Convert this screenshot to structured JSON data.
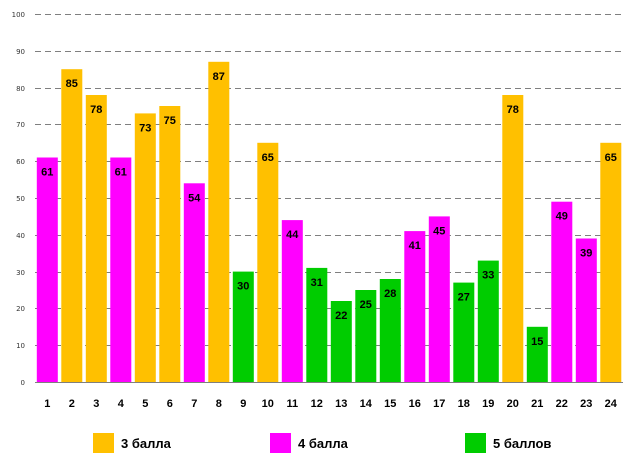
{
  "chart_data": {
    "type": "bar",
    "categories": [
      "1",
      "2",
      "3",
      "4",
      "5",
      "6",
      "7",
      "8",
      "9",
      "10",
      "11",
      "12",
      "13",
      "14",
      "15",
      "16",
      "17",
      "18",
      "19",
      "20",
      "21",
      "22",
      "23",
      "24"
    ],
    "values": [
      61,
      85,
      78,
      61,
      73,
      75,
      54,
      87,
      30,
      65,
      44,
      31,
      22,
      25,
      28,
      41,
      45,
      27,
      33,
      78,
      15,
      49,
      39,
      65
    ],
    "groups": [
      "4",
      "3",
      "3",
      "4",
      "3",
      "3",
      "4",
      "3",
      "5",
      "3",
      "4",
      "5",
      "5",
      "5",
      "5",
      "4",
      "4",
      "5",
      "5",
      "3",
      "5",
      "4",
      "4",
      "3"
    ],
    "ylim": [
      0,
      100
    ],
    "yticks": [
      0,
      10,
      20,
      30,
      40,
      50,
      60,
      70,
      80,
      90,
      100
    ],
    "grid": true,
    "legend": [
      {
        "key": "3",
        "label": "3 балла",
        "color": "#ffc000"
      },
      {
        "key": "4",
        "label": "4 балла",
        "color": "#ff00ff"
      },
      {
        "key": "5",
        "label": "5 баллов",
        "color": "#00cc00"
      }
    ],
    "title": "",
    "xlabel": "",
    "ylabel": ""
  }
}
